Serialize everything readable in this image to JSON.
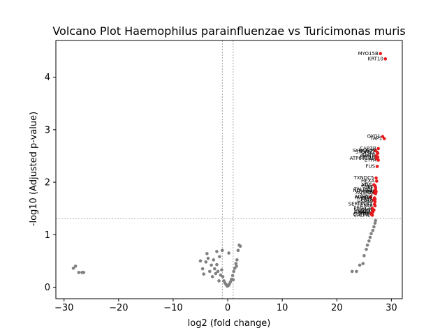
{
  "chart_data": {
    "type": "scatter",
    "title": "Volcano Plot Haemophilus parainfluenzae vs Turicimonas muris",
    "xlabel": "log2 (fold change)",
    "ylabel": "-log10 (Adjusted p-value)",
    "xlim": [
      -31.5,
      32
    ],
    "ylim": [
      -0.22,
      4.7
    ],
    "xticks": [
      -30,
      -20,
      -10,
      0,
      10,
      20,
      30
    ],
    "yticks": [
      0,
      1,
      2,
      3,
      4
    ],
    "grid": false,
    "threshold_lines": {
      "vertical": [
        -1,
        1
      ],
      "horizontal": [
        1.3
      ]
    },
    "colors": {
      "significant": "#e8191b",
      "nonsignificant": "#808080",
      "threshold": "#808080"
    },
    "significant_points": [
      {
        "label": "MYO15B",
        "x": 28.0,
        "y": 4.45
      },
      {
        "label": "KRT10",
        "x": 28.9,
        "y": 4.35
      },
      {
        "label": "GYG1",
        "x": 28.4,
        "y": 2.87
      },
      {
        "label": "TAP1",
        "x": 28.7,
        "y": 2.83
      },
      {
        "label": "CAPZB",
        "x": 27.6,
        "y": 2.64
      },
      {
        "label": "SYNCRIP",
        "x": 27.1,
        "y": 2.6
      },
      {
        "label": "STOML2",
        "x": 27.4,
        "y": 2.57
      },
      {
        "label": "SRSF1",
        "x": 27.5,
        "y": 2.55
      },
      {
        "label": "APRT",
        "x": 27.2,
        "y": 2.5
      },
      {
        "label": "EEF1G",
        "x": 27.5,
        "y": 2.48
      },
      {
        "label": "ATP6V1B2",
        "x": 27.3,
        "y": 2.45
      },
      {
        "label": "ETFA",
        "x": 27.6,
        "y": 2.42
      },
      {
        "label": "FUS",
        "x": 27.4,
        "y": 2.3
      },
      {
        "label": "TXNDC5",
        "x": 27.2,
        "y": 2.08
      },
      {
        "label": "HEXA",
        "x": 27.3,
        "y": 2.02
      },
      {
        "label": "ATIC",
        "x": 26.8,
        "y": 1.95
      },
      {
        "label": "PFKL",
        "x": 27.0,
        "y": 1.93
      },
      {
        "label": "TKT",
        "x": 27.1,
        "y": 1.9
      },
      {
        "label": "TALDO1",
        "x": 27.1,
        "y": 1.86
      },
      {
        "label": "NDUFS1",
        "x": 27.0,
        "y": 1.84
      },
      {
        "label": "GPI",
        "x": 27.2,
        "y": 1.82
      },
      {
        "label": "ACTR3",
        "x": 26.8,
        "y": 1.8
      },
      {
        "label": "CCT2",
        "x": 27.1,
        "y": 1.78
      },
      {
        "label": "ADH5",
        "x": 26.2,
        "y": 1.72
      },
      {
        "label": "NAMPT",
        "x": 26.9,
        "y": 1.7
      },
      {
        "label": "IDH1",
        "x": 27.0,
        "y": 1.68
      },
      {
        "label": "PGD",
        "x": 26.7,
        "y": 1.66
      },
      {
        "label": "HSPA9",
        "x": 27.0,
        "y": 1.63
      },
      {
        "label": "SERPINB3",
        "x": 26.9,
        "y": 1.58
      },
      {
        "label": "CSTB",
        "x": 27.0,
        "y": 1.55
      },
      {
        "label": "PRDX2",
        "x": 26.5,
        "y": 1.5
      },
      {
        "label": "LDHB",
        "x": 26.8,
        "y": 1.47
      },
      {
        "label": "PSMA1",
        "x": 26.6,
        "y": 1.45
      },
      {
        "label": "ANXA3",
        "x": 26.6,
        "y": 1.43
      },
      {
        "label": "PPIB",
        "x": 26.4,
        "y": 1.41
      },
      {
        "label": "GSTP1",
        "x": 26.3,
        "y": 1.39
      },
      {
        "label": "CALM1",
        "x": 26.5,
        "y": 1.37
      }
    ],
    "nonsignificant_points": [
      {
        "x": -28.3,
        "y": 0.36
      },
      {
        "x": -27.9,
        "y": 0.4
      },
      {
        "x": -27.3,
        "y": 0.28
      },
      {
        "x": -26.7,
        "y": 0.28
      },
      {
        "x": -26.4,
        "y": 0.28
      },
      {
        "x": -5.0,
        "y": 0.5
      },
      {
        "x": -4.6,
        "y": 0.35
      },
      {
        "x": -4.4,
        "y": 0.25
      },
      {
        "x": -4.0,
        "y": 0.48
      },
      {
        "x": -3.8,
        "y": 0.64
      },
      {
        "x": -3.6,
        "y": 0.55
      },
      {
        "x": -3.3,
        "y": 0.3
      },
      {
        "x": -3.0,
        "y": 0.42
      },
      {
        "x": -2.8,
        "y": 0.2
      },
      {
        "x": -2.6,
        "y": 0.52
      },
      {
        "x": -2.4,
        "y": 0.35
      },
      {
        "x": -2.2,
        "y": 0.26
      },
      {
        "x": -2.0,
        "y": 0.43
      },
      {
        "x": -1.8,
        "y": 0.3
      },
      {
        "x": -1.5,
        "y": 0.58
      },
      {
        "x": -1.3,
        "y": 0.23
      },
      {
        "x": -1.1,
        "y": 0.33
      },
      {
        "x": -0.9,
        "y": 0.2
      },
      {
        "x": -0.7,
        "y": 0.12
      },
      {
        "x": -0.5,
        "y": 0.08
      },
      {
        "x": -0.3,
        "y": 0.05
      },
      {
        "x": -0.1,
        "y": 0.02
      },
      {
        "x": 0.1,
        "y": 0.03
      },
      {
        "x": 0.3,
        "y": 0.06
      },
      {
        "x": 0.5,
        "y": 0.1
      },
      {
        "x": 0.7,
        "y": 0.15
      },
      {
        "x": 0.9,
        "y": 0.22
      },
      {
        "x": 1.1,
        "y": 0.3
      },
      {
        "x": 1.3,
        "y": 0.36
      },
      {
        "x": 1.5,
        "y": 0.45
      },
      {
        "x": 1.7,
        "y": 0.52
      },
      {
        "x": 1.9,
        "y": 0.7
      },
      {
        "x": 2.1,
        "y": 0.8
      },
      {
        "x": 2.3,
        "y": 0.78
      },
      {
        "x": -2.0,
        "y": 0.68
      },
      {
        "x": -1.0,
        "y": 0.7
      },
      {
        "x": 0.2,
        "y": 0.65
      },
      {
        "x": 1.6,
        "y": 0.4
      },
      {
        "x": 1.0,
        "y": 0.14
      },
      {
        "x": -1.6,
        "y": 0.12
      },
      {
        "x": 22.8,
        "y": 0.3
      },
      {
        "x": 23.6,
        "y": 0.3
      },
      {
        "x": 24.2,
        "y": 0.42
      },
      {
        "x": 24.8,
        "y": 0.45
      },
      {
        "x": 25.0,
        "y": 0.6
      },
      {
        "x": 25.4,
        "y": 0.72
      },
      {
        "x": 25.6,
        "y": 0.8
      },
      {
        "x": 25.9,
        "y": 0.88
      },
      {
        "x": 26.1,
        "y": 0.95
      },
      {
        "x": 26.3,
        "y": 1.02
      },
      {
        "x": 26.6,
        "y": 1.08
      },
      {
        "x": 26.8,
        "y": 1.15
      },
      {
        "x": 27.0,
        "y": 1.22
      },
      {
        "x": 27.1,
        "y": 1.27
      }
    ]
  }
}
